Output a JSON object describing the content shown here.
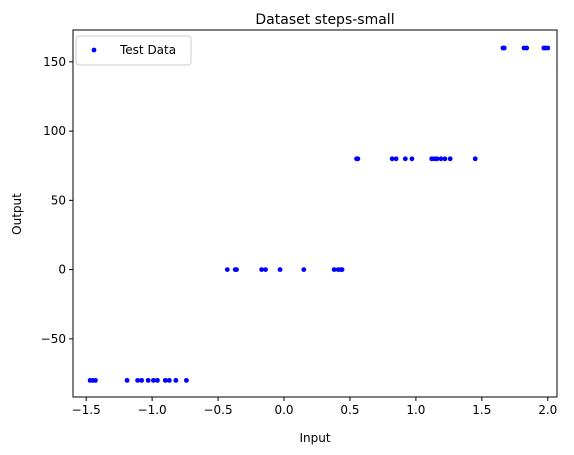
{
  "chart_data": {
    "type": "scatter",
    "title": "Dataset steps-small",
    "xlabel": "Input",
    "ylabel": "Output",
    "xlim": [
      -1.6,
      2.07
    ],
    "ylim": [
      -92,
      173
    ],
    "xticks": [
      -1.5,
      -1.0,
      -0.5,
      0.0,
      0.5,
      1.0,
      1.5,
      2.0
    ],
    "xtick_labels": [
      "−1.5",
      "−1.0",
      "−0.5",
      "0.0",
      "0.5",
      "1.0",
      "1.5",
      "2.0"
    ],
    "yticks": [
      -50,
      0,
      50,
      100,
      150
    ],
    "ytick_labels": [
      "−50",
      "0",
      "50",
      "100",
      "150"
    ],
    "grid": false,
    "legend_position": "upper-left",
    "series": [
      {
        "name": "Test Data",
        "color": "#0000ff",
        "marker": "circle",
        "points": [
          [
            -1.47,
            -80
          ],
          [
            -1.45,
            -80
          ],
          [
            -1.43,
            -80
          ],
          [
            -1.19,
            -80
          ],
          [
            -1.11,
            -80
          ],
          [
            -1.08,
            -80
          ],
          [
            -1.03,
            -80
          ],
          [
            -0.99,
            -80
          ],
          [
            -0.96,
            -80
          ],
          [
            -0.9,
            -80
          ],
          [
            -0.87,
            -80
          ],
          [
            -0.82,
            -80
          ],
          [
            -0.74,
            -80
          ],
          [
            -0.43,
            0
          ],
          [
            -0.37,
            0
          ],
          [
            -0.36,
            0
          ],
          [
            -0.17,
            0
          ],
          [
            -0.14,
            0
          ],
          [
            -0.03,
            0
          ],
          [
            0.15,
            0
          ],
          [
            0.38,
            0
          ],
          [
            0.41,
            0
          ],
          [
            0.43,
            0
          ],
          [
            0.44,
            0
          ],
          [
            0.55,
            80
          ],
          [
            0.56,
            80
          ],
          [
            0.82,
            80
          ],
          [
            0.85,
            80
          ],
          [
            0.92,
            80
          ],
          [
            0.97,
            80
          ],
          [
            1.12,
            80
          ],
          [
            1.14,
            80
          ],
          [
            1.16,
            80
          ],
          [
            1.19,
            80
          ],
          [
            1.22,
            80
          ],
          [
            1.26,
            80
          ],
          [
            1.45,
            80
          ],
          [
            1.66,
            160
          ],
          [
            1.67,
            160
          ],
          [
            1.82,
            160
          ],
          [
            1.84,
            160
          ],
          [
            1.97,
            160
          ],
          [
            1.98,
            160
          ],
          [
            2.0,
            160
          ]
        ]
      }
    ]
  }
}
